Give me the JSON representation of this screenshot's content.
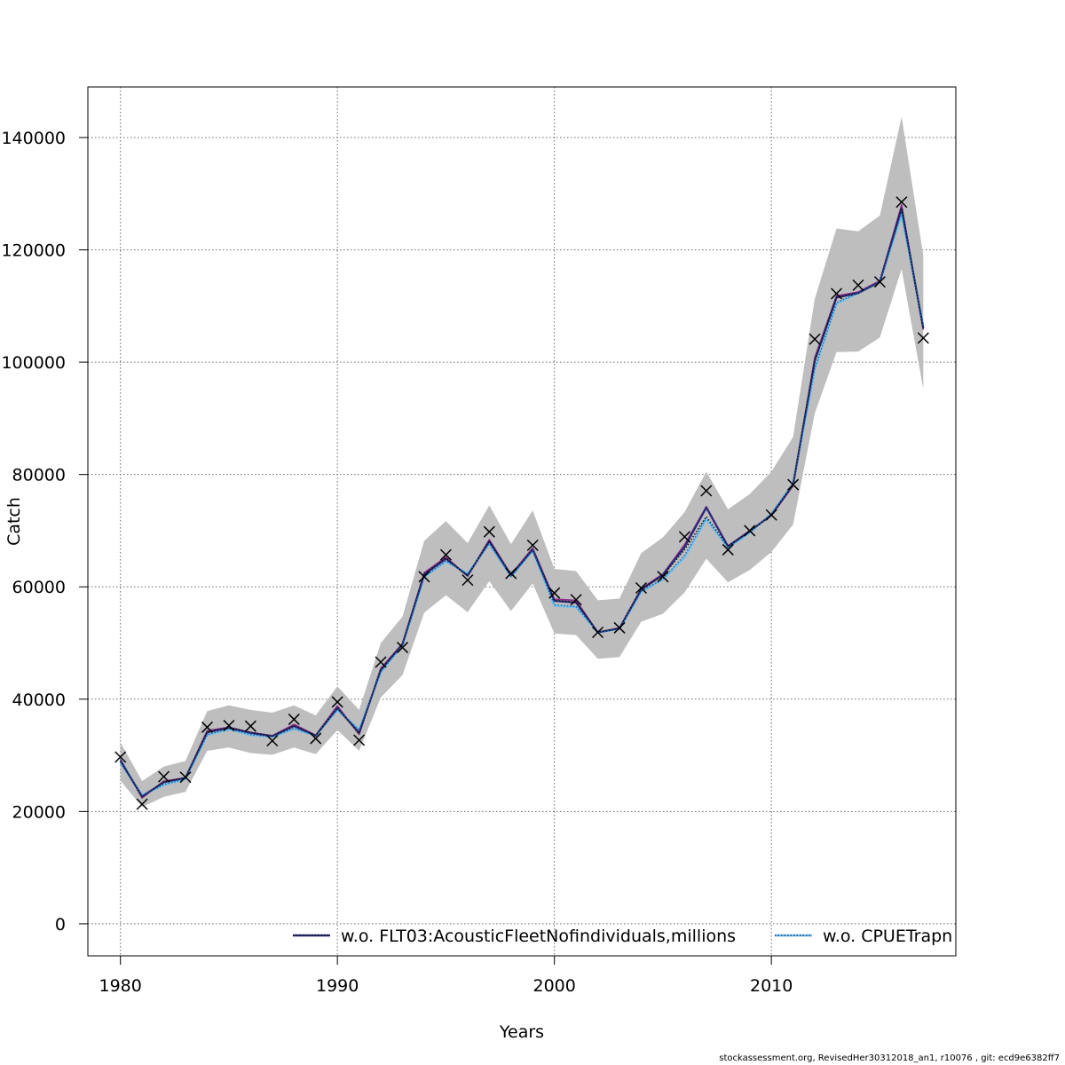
{
  "chart_data": {
    "type": "line",
    "xlabel": "Years",
    "ylabel": "Catch",
    "xlim": [
      1978.5,
      2018.5
    ],
    "ylim": [
      -5700,
      149000
    ],
    "xticks": [
      1980,
      1990,
      2000,
      2010
    ],
    "yticks": [
      0,
      20000,
      40000,
      60000,
      80000,
      100000,
      120000,
      140000
    ],
    "ytick_labels": [
      "0",
      "20000",
      "40000",
      "60000",
      "80000",
      "100000",
      "120000",
      "140000"
    ],
    "grid": true,
    "legend_position": "bottom-right",
    "x": [
      1980,
      1981,
      1982,
      1983,
      1984,
      1985,
      1986,
      1987,
      1988,
      1989,
      1990,
      1991,
      1992,
      1993,
      1994,
      1995,
      1996,
      1997,
      1998,
      1999,
      2000,
      2001,
      2002,
      2003,
      2004,
      2005,
      2006,
      2007,
      2008,
      2009,
      2010,
      2011,
      2012,
      2013,
      2014,
      2015,
      2016,
      2017
    ],
    "band": {
      "lower": [
        25500,
        20800,
        22600,
        23500,
        30800,
        31400,
        30400,
        30100,
        31400,
        30200,
        34500,
        30800,
        40300,
        44300,
        55400,
        58500,
        55500,
        61000,
        55700,
        60600,
        51700,
        51400,
        47200,
        47500,
        53800,
        55200,
        59000,
        65000,
        60800,
        63000,
        66200,
        71100,
        90900,
        101800,
        101900,
        104400,
        116600,
        95200
      ],
      "upper": [
        32300,
        25400,
        28000,
        29000,
        37900,
        38900,
        38100,
        37600,
        38900,
        37100,
        42300,
        38100,
        50000,
        54700,
        68200,
        71700,
        67800,
        74500,
        67600,
        73600,
        63200,
        62800,
        57600,
        57900,
        66000,
        68800,
        73300,
        80500,
        73800,
        76500,
        80500,
        86700,
        111300,
        123800,
        123300,
        126100,
        143700,
        119000
      ]
    },
    "observed": [
      29700,
      21300,
      26200,
      26100,
      35000,
      35300,
      35200,
      32600,
      36400,
      33000,
      39500,
      32700,
      46600,
      49200,
      61800,
      65700,
      61200,
      69800,
      62400,
      67400,
      58900,
      57700,
      51900,
      52700,
      59800,
      61800,
      68900,
      77100,
      66600,
      70000,
      72800,
      78200,
      104100,
      112200,
      113700,
      114300,
      128500,
      104300
    ],
    "series": [
      {
        "name": "w.o. FLT03:AcousticFleetNofindividuals,millions",
        "values": [
          29000,
          22700,
          25200,
          26000,
          34100,
          34900,
          34000,
          33400,
          35200,
          33500,
          38400,
          34000,
          45200,
          49800,
          62200,
          65000,
          62000,
          68100,
          62000,
          66600,
          57500,
          57200,
          51900,
          52600,
          59500,
          62100,
          67100,
          74100,
          67200,
          69900,
          72800,
          78200,
          100300,
          111500,
          112300,
          114300,
          127400,
          106000
        ],
        "color": "#2a2a7a",
        "style": "solid"
      },
      {
        "name": "w.o. CPUETrapn",
        "values": [
          28600,
          22900,
          24700,
          25800,
          33600,
          34600,
          33600,
          33300,
          34700,
          33500,
          38000,
          34600,
          44800,
          49600,
          61700,
          64500,
          62400,
          67600,
          61800,
          66400,
          56600,
          56400,
          51900,
          52500,
          59100,
          61300,
          65200,
          72000,
          67000,
          69600,
          73000,
          78400,
          98700,
          110400,
          112300,
          114300,
          126200,
          106500
        ],
        "color": "#6fc0ee",
        "style": "solid"
      }
    ],
    "extra_lines": [
      {
        "values": [
          29300,
          22400,
          25400,
          26000,
          34400,
          35000,
          34100,
          33500,
          35500,
          33600,
          38800,
          33700,
          45500,
          49900,
          62500,
          65300,
          61900,
          68400,
          62200,
          66900,
          57800,
          57600,
          51900,
          52700,
          59700,
          62300,
          67500,
          74300,
          67300,
          70000,
          72700,
          78000,
          100800,
          111800,
          112500,
          114500,
          128000,
          105800
        ],
        "color": "#8a2a8a",
        "style": "solid"
      },
      {
        "values": [
          29100,
          22600,
          25300,
          26000,
          34200,
          34900,
          34100,
          33400,
          35300,
          33500,
          38500,
          33900,
          45300,
          49800,
          62300,
          65100,
          62000,
          68200,
          62100,
          66700,
          57600,
          57300,
          51900,
          52600,
          59600,
          62000,
          66600,
          72500,
          67200,
          69900,
          72700,
          78100,
          100300,
          111500,
          112300,
          114300,
          127400,
          106000
        ],
        "color": "#111111",
        "style": "dotted"
      },
      {
        "values": [
          29300,
          22800,
          24800,
          25800,
          33700,
          34700,
          33700,
          33300,
          34800,
          33500,
          38200,
          34500,
          44900,
          49600,
          61800,
          64600,
          62300,
          67700,
          61900,
          66500,
          56800,
          56500,
          51900,
          52500,
          59200,
          61400,
          65600,
          72300,
          67000,
          69700,
          73000,
          78400,
          98900,
          110600,
          112300,
          114300,
          126600,
          106400
        ],
        "color": "#1a6aa8",
        "style": "dotted"
      }
    ],
    "colors": {
      "band": "#bebebe",
      "observed_marker": "#000000",
      "grid": "#6a6a6a"
    }
  },
  "footer": "stockassessment.org, RevisedHer30312018_an1, r10076 , git: ecd9e6382ff7"
}
